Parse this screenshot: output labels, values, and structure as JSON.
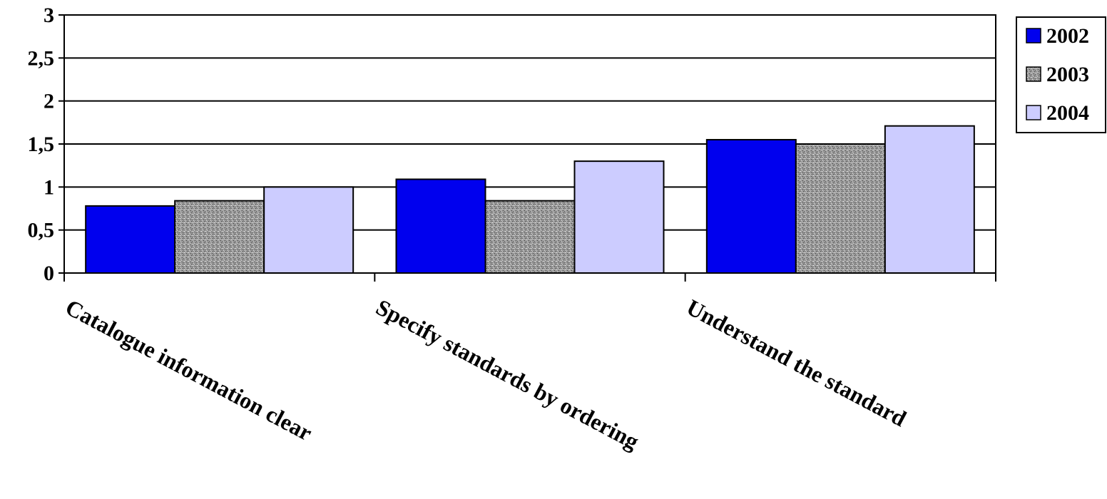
{
  "chart_data": {
    "type": "bar",
    "categories": [
      "Catalogue information clear",
      "Specify standards by ordering",
      "Understand the standard"
    ],
    "series": [
      {
        "name": "2002",
        "values": [
          0.78,
          1.09,
          1.55
        ],
        "color": "#0000ee",
        "pattern": "solid"
      },
      {
        "name": "2003",
        "values": [
          0.84,
          0.84,
          1.5
        ],
        "color": "#8a8a8a",
        "pattern": "speckled-gray"
      },
      {
        "name": "2004",
        "values": [
          1.0,
          1.3,
          1.71
        ],
        "color": "#ccccff",
        "pattern": "solid"
      }
    ],
    "ylim": [
      0,
      3
    ],
    "yticks": [
      0,
      0.5,
      1,
      1.5,
      2,
      2.5,
      3
    ],
    "ytick_labels": [
      "0",
      "0,5",
      "1",
      "1,5",
      "2",
      "2,5",
      "3"
    ],
    "grid": true,
    "legend_position": "top-right",
    "title": "",
    "xlabel": "",
    "ylabel": ""
  }
}
